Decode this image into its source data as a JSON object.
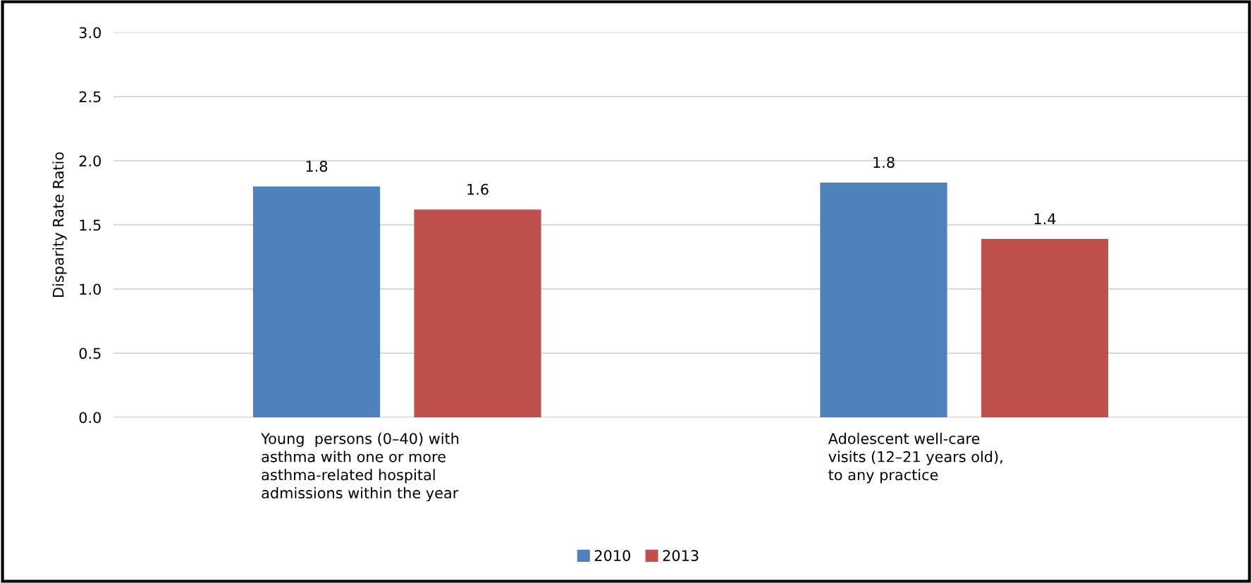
{
  "chart_data": {
    "type": "bar",
    "ylabel": "Disparity Rate Ratio",
    "categories": [
      "Young  persons (0–40) with\nasthma with one or more\nasthma-related hospital\nadmissions within the year",
      "Adolescent well-care\nvisits (12–21 years old),\nto any practice"
    ],
    "series": [
      {
        "name": "2010",
        "color": "#4f81bd",
        "values": [
          1.8,
          1.83
        ],
        "value_labels": [
          "1.8",
          "1.8"
        ]
      },
      {
        "name": "2013",
        "color": "#c0504d",
        "values": [
          1.62,
          1.39
        ],
        "value_labels": [
          "1.6",
          "1.4"
        ]
      }
    ],
    "ylim": [
      0,
      3
    ],
    "yticks": [
      {
        "value": 0,
        "label": "0.0"
      },
      {
        "value": 0.5,
        "label": "0.5"
      },
      {
        "value": 1,
        "label": "1.0"
      },
      {
        "value": 1.5,
        "label": "1.5"
      },
      {
        "value": 2,
        "label": "2.0"
      },
      {
        "value": 2.5,
        "label": "2.5"
      },
      {
        "value": 3,
        "label": "3.0"
      }
    ],
    "grid": "y",
    "legend": "bottom"
  }
}
